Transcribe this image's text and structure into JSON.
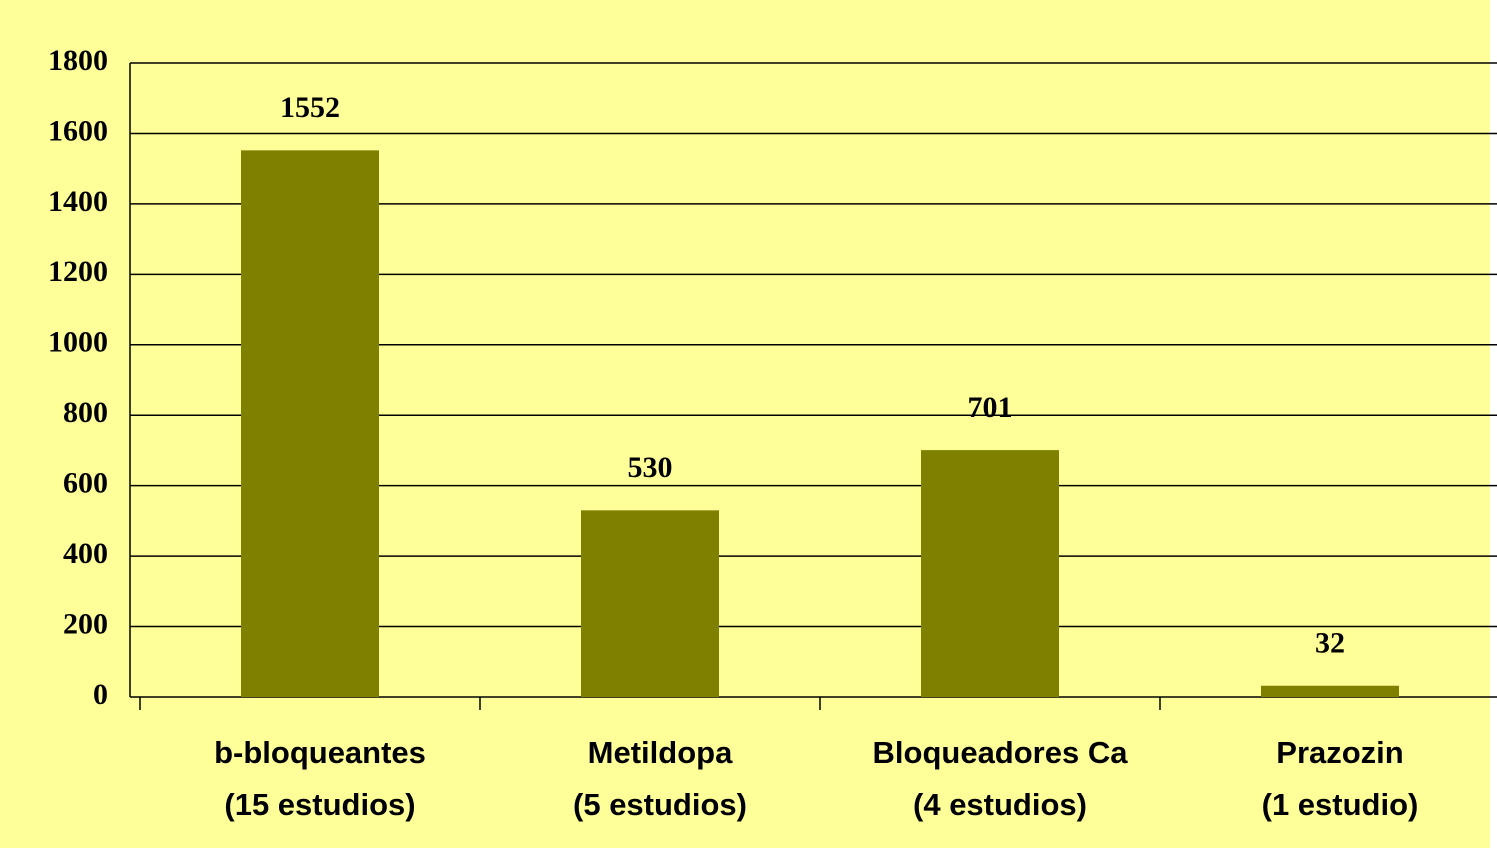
{
  "chart_data": {
    "type": "bar",
    "categories": [
      [
        "b-bloqueantes",
        "(15 estudios)"
      ],
      [
        "Metildopa",
        "(5 estudios)"
      ],
      [
        "Bloqueadores Ca",
        "(4 estudios)"
      ],
      [
        "Prazozin",
        "(1 estudio)"
      ]
    ],
    "values": [
      1552,
      530,
      701,
      32
    ],
    "color": "#808000",
    "ylim": [
      0,
      1800
    ],
    "yticks": [
      0,
      200,
      400,
      600,
      800,
      1000,
      1200,
      1400,
      1600,
      1800
    ],
    "grid": true
  }
}
